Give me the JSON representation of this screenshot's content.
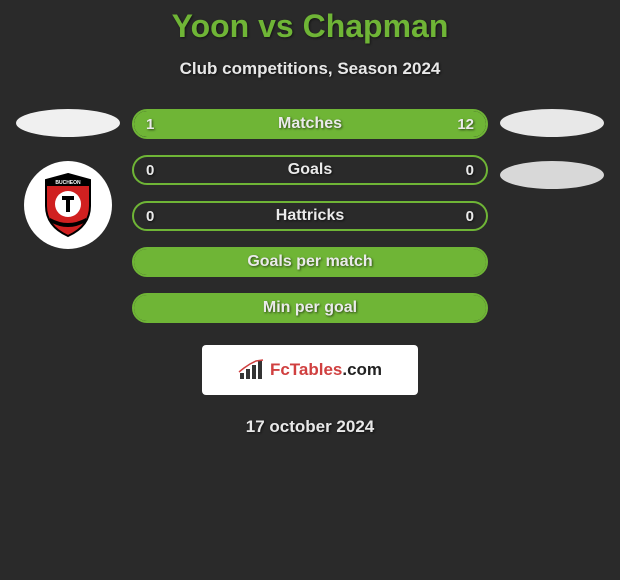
{
  "title": "Yoon vs Chapman",
  "subtitle": "Club competitions, Season 2024",
  "date": "17 october 2024",
  "colors": {
    "background": "#2a2a2a",
    "accent": "#6fb536",
    "text": "#e8e8e8",
    "flag_left": "#f0f0f0",
    "flag_right": "#e8e8e8",
    "flag_right_2": "#d8d8d8",
    "logo_bg": "#ffffff",
    "shield_red": "#d02020",
    "shield_black": "#000000"
  },
  "bars": [
    {
      "label": "Matches",
      "left_value": "1",
      "right_value": "12",
      "left_pct": 18,
      "right_pct": 82,
      "show_values": true
    },
    {
      "label": "Goals",
      "left_value": "0",
      "right_value": "0",
      "left_pct": 0,
      "right_pct": 0,
      "show_values": true
    },
    {
      "label": "Hattricks",
      "left_value": "0",
      "right_value": "0",
      "left_pct": 0,
      "right_pct": 0,
      "show_values": true
    },
    {
      "label": "Goals per match",
      "left_value": "",
      "right_value": "",
      "left_pct": 100,
      "right_pct": 0,
      "show_values": false
    },
    {
      "label": "Min per goal",
      "left_value": "",
      "right_value": "",
      "left_pct": 100,
      "right_pct": 0,
      "show_values": false
    }
  ],
  "brand": {
    "name": "FcTables",
    "suffix": ".com"
  }
}
